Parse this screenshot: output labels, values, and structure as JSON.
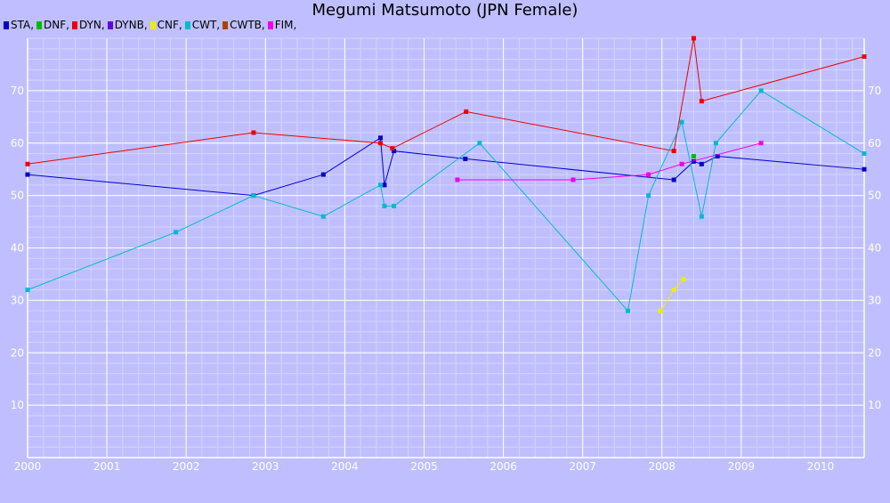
{
  "chart_data": {
    "type": "line",
    "title": "Megumi Matsumoto (JPN Female)",
    "xlabel": "",
    "ylabel": "",
    "xlim": [
      2000.0,
      2010.55
    ],
    "ylim": [
      0,
      80
    ],
    "grid": true,
    "legend_position": "top-left",
    "x_ticks": [
      "2000",
      "2001",
      "2002",
      "2003",
      "2004",
      "2005",
      "2006",
      "2007",
      "2008",
      "2009",
      "2010"
    ],
    "y_ticks": [
      10,
      20,
      30,
      40,
      50,
      60,
      70
    ],
    "legend": [
      {
        "label": "STA,",
        "color": "#0000cc"
      },
      {
        "label": "DNF,",
        "color": "#00bb00"
      },
      {
        "label": "DYN,",
        "color": "#ee0000"
      },
      {
        "label": "DYNB,",
        "color": "#6600dd"
      },
      {
        "label": "CNF,",
        "color": "#eeee00"
      },
      {
        "label": "CWT,",
        "color": "#00bbcc"
      },
      {
        "label": "CWTB,",
        "color": "#aa4400"
      },
      {
        "label": "FIM,",
        "color": "#ee00ee"
      }
    ],
    "series": [
      {
        "name": "STA",
        "color": "#0000cc",
        "points": [
          [
            2000.0,
            54
          ],
          [
            2002.85,
            50
          ],
          [
            2003.73,
            54
          ],
          [
            2004.45,
            61
          ],
          [
            2004.5,
            52
          ],
          [
            2004.62,
            58.5
          ],
          [
            2005.52,
            57
          ],
          [
            2008.15,
            53
          ],
          [
            2008.4,
            56.5
          ],
          [
            2008.5,
            56
          ],
          [
            2008.7,
            57.5
          ],
          [
            2010.55,
            55
          ]
        ]
      },
      {
        "name": "DNF",
        "color": "#00bb00",
        "points": [
          [
            2008.4,
            57.5
          ]
        ]
      },
      {
        "name": "DYN",
        "color": "#ee0000",
        "points": [
          [
            2000.0,
            56
          ],
          [
            2002.85,
            62
          ],
          [
            2004.45,
            60
          ],
          [
            2004.6,
            59
          ],
          [
            2005.53,
            66
          ],
          [
            2008.15,
            58.5
          ],
          [
            2008.4,
            80
          ],
          [
            2008.5,
            68
          ],
          [
            2010.55,
            76.5
          ]
        ]
      },
      {
        "name": "CWT",
        "color": "#00bbcc",
        "points": [
          [
            2000.0,
            32
          ],
          [
            2001.87,
            43
          ],
          [
            2002.85,
            50
          ],
          [
            2003.73,
            46
          ],
          [
            2004.45,
            52
          ],
          [
            2004.5,
            48
          ],
          [
            2004.62,
            48
          ],
          [
            2005.7,
            60
          ],
          [
            2007.57,
            28
          ],
          [
            2007.83,
            50
          ],
          [
            2008.25,
            64
          ],
          [
            2008.5,
            46
          ],
          [
            2008.68,
            60
          ],
          [
            2009.25,
            70
          ],
          [
            2010.55,
            58
          ]
        ]
      },
      {
        "name": "CNF",
        "color": "#eeee00",
        "points": [
          [
            2007.98,
            28
          ],
          [
            2008.15,
            32
          ],
          [
            2008.27,
            34
          ]
        ]
      },
      {
        "name": "FIM",
        "color": "#ee00ee",
        "points": [
          [
            2005.42,
            53
          ],
          [
            2006.88,
            53
          ],
          [
            2007.83,
            54
          ],
          [
            2008.25,
            56
          ],
          [
            2009.25,
            60
          ]
        ]
      }
    ]
  }
}
